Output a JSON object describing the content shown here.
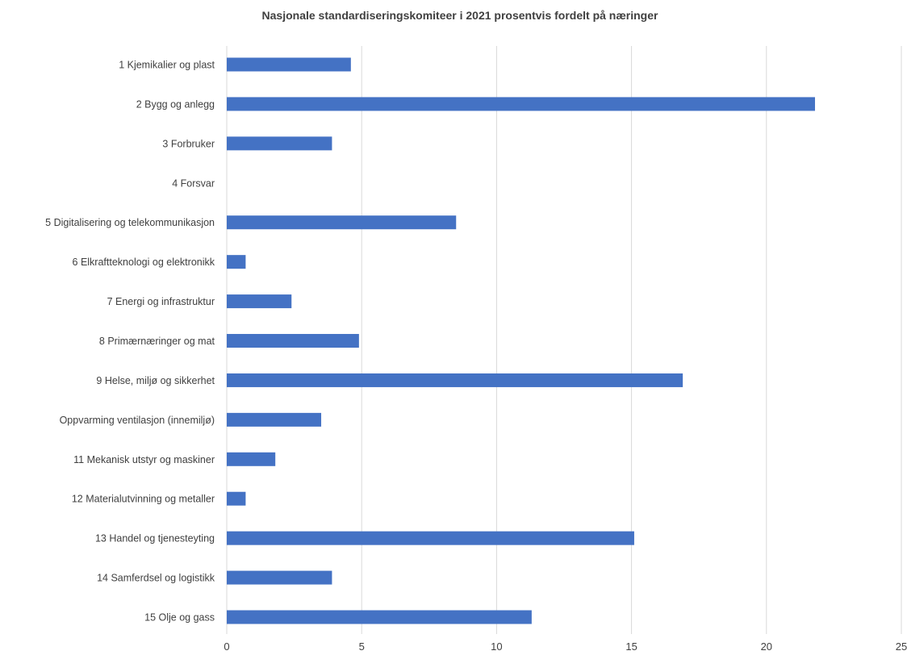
{
  "chart_data": {
    "type": "bar",
    "orientation": "horizontal",
    "title": "Nasjonale standardiseringskomiteer i 2021 prosentvis fordelt på næringer",
    "xlabel": "",
    "ylabel": "",
    "categories": [
      "1 Kjemikalier og plast",
      "2 Bygg og anlegg",
      "3 Forbruker",
      "4 Forsvar",
      "5 Digitalisering og telekommunikasjon",
      "6 Elkraftteknologi og elektronikk",
      "7 Energi og infrastruktur",
      "8 Primærnæringer og mat",
      "9 Helse, miljø og sikkerhet",
      "Oppvarming ventilasjon (innemiljø)",
      "11 Mekanisk utstyr og maskiner",
      "12 Materialutvinning og metaller",
      "13 Handel og tjenesteyting",
      "14 Samferdsel og logistikk",
      "15 Olje og gass"
    ],
    "values": [
      4.6,
      21.8,
      3.9,
      0,
      8.5,
      0.7,
      2.4,
      4.9,
      16.9,
      3.5,
      1.8,
      0.7,
      15.1,
      3.9,
      11.3
    ],
    "xlim": [
      0,
      25
    ],
    "xticks": [
      "0",
      "5",
      "10",
      "15",
      "20",
      "25"
    ],
    "bar_color": "#4472c4",
    "grid": true,
    "legend": "none"
  }
}
